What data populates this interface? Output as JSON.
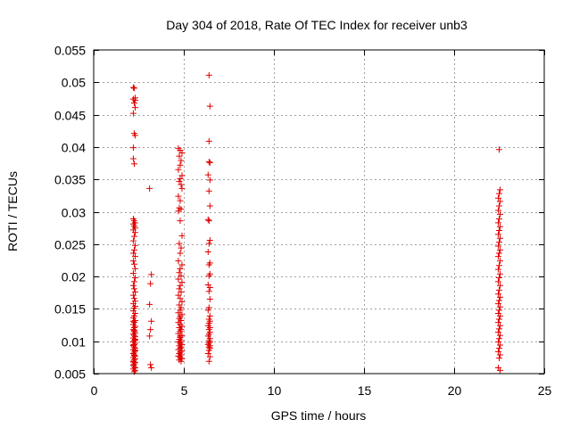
{
  "chart_data": {
    "type": "scatter",
    "title": "Day 304 of 2018, Rate Of TEC Index for receiver unb3",
    "xlabel": "GPS time / hours",
    "ylabel": "ROTI / TECUs",
    "xlim": [
      0,
      25
    ],
    "ylim": [
      0.005,
      0.055
    ],
    "xticks": [
      0,
      5,
      10,
      15,
      20,
      25
    ],
    "xtick_labels": [
      "0",
      "5",
      "10",
      "15",
      "20",
      "25"
    ],
    "yticks": [
      0.005,
      0.01,
      0.015,
      0.02,
      0.025,
      0.03,
      0.035,
      0.04,
      0.045,
      0.05,
      0.055
    ],
    "ytick_labels": [
      "0.005",
      "0.01",
      "0.015",
      "0.02",
      "0.025",
      "0.03",
      "0.035",
      "0.04",
      "0.045",
      "0.05",
      "0.055"
    ],
    "grid": true,
    "marker": "+",
    "color": "#e00000",
    "series": [
      {
        "name": "ROTI",
        "x": [
          2.2,
          2.25,
          2.3,
          2.2,
          2.3,
          2.25,
          2.3,
          2.2,
          2.25,
          2.3,
          2.2,
          2.2,
          2.25,
          2.2,
          2.25,
          2.3,
          2.2,
          2.25,
          2.3,
          2.2,
          2.3,
          2.25,
          2.2,
          2.3,
          2.25,
          2.2,
          2.3,
          2.2,
          2.25,
          2.3,
          2.2,
          2.3,
          2.25,
          2.2,
          2.25,
          2.3,
          2.2,
          2.25,
          2.3,
          2.2,
          2.3,
          2.25,
          2.2,
          2.3,
          2.25,
          2.2,
          2.3,
          2.25,
          2.2,
          2.3,
          2.25,
          2.2,
          2.25,
          2.3,
          2.2,
          2.25,
          2.3,
          2.2,
          2.3,
          2.25,
          2.2,
          2.3,
          2.25,
          2.2,
          2.25,
          2.3,
          2.2,
          2.3,
          2.25,
          2.2,
          2.25,
          2.3,
          2.2,
          2.3,
          2.25,
          2.2,
          2.3,
          2.25,
          2.2,
          2.25,
          2.3,
          2.2,
          2.3,
          2.25,
          2.2,
          2.25,
          2.3,
          2.2,
          2.3,
          2.25,
          2.2,
          3.1,
          3.2,
          3.15,
          3.1,
          3.2,
          3.15,
          3.1,
          3.15,
          3.2,
          4.7,
          4.8,
          4.9,
          4.75,
          4.85,
          4.8,
          4.7,
          4.9,
          4.8,
          4.75,
          4.85,
          4.9,
          4.7,
          4.8,
          4.75,
          4.85,
          4.7,
          4.8,
          4.9,
          4.75,
          4.85,
          4.8,
          4.7,
          4.9,
          4.8,
          4.75,
          4.85,
          4.7,
          4.9,
          4.8,
          4.75,
          4.85,
          4.7,
          4.8,
          4.9,
          4.75,
          4.85,
          4.8,
          4.7,
          4.9,
          4.8,
          4.75,
          4.85,
          4.7,
          4.8,
          4.9,
          4.75,
          4.85,
          4.8,
          4.7,
          4.9,
          4.8,
          4.75,
          4.85,
          4.7,
          4.8,
          4.9,
          4.75,
          4.85,
          4.8,
          4.7,
          4.9,
          4.8,
          4.75,
          4.85,
          4.7,
          4.8,
          4.9,
          4.75,
          4.85,
          4.8,
          6.4,
          6.45,
          6.4,
          6.45,
          6.4,
          6.35,
          6.45,
          6.4,
          6.45,
          6.35,
          6.4,
          6.45,
          6.4,
          6.35,
          6.45,
          6.4,
          6.45,
          6.4,
          6.35,
          6.45,
          6.4,
          6.45,
          6.4,
          6.35,
          6.45,
          6.4,
          6.45,
          6.4,
          6.35,
          6.45,
          6.4,
          6.45,
          6.4,
          6.35,
          6.45,
          6.4,
          6.45,
          6.4,
          6.35,
          6.45,
          6.4,
          6.45,
          6.4,
          6.35,
          6.45,
          6.4,
          22.5,
          22.55,
          22.5,
          22.45,
          22.55,
          22.5,
          22.45,
          22.55,
          22.5,
          22.45,
          22.55,
          22.5,
          22.45,
          22.55,
          22.5,
          22.45,
          22.55,
          22.5,
          22.45,
          22.55,
          22.5,
          22.45,
          22.55,
          22.5,
          22.45,
          22.55,
          22.5,
          22.45,
          22.55,
          22.5,
          22.45,
          22.55,
          22.5,
          22.45,
          22.55,
          22.5,
          22.45,
          22.55,
          22.5,
          22.45,
          22.55,
          22.5,
          22.45,
          22.55,
          22.5,
          22.45,
          22.55,
          22.5,
          22.45,
          22.55
        ],
        "y": [
          0.0492,
          0.0491,
          0.0476,
          0.0474,
          0.0472,
          0.0468,
          0.0461,
          0.0452,
          0.0421,
          0.0418,
          0.0399,
          0.0382,
          0.0374,
          0.0289,
          0.0286,
          0.0283,
          0.0281,
          0.0278,
          0.0275,
          0.0272,
          0.0268,
          0.0262,
          0.0255,
          0.0248,
          0.0241,
          0.0236,
          0.0231,
          0.0224,
          0.0219,
          0.0212,
          0.0205,
          0.0198,
          0.0192,
          0.0186,
          0.0181,
          0.0176,
          0.0171,
          0.0166,
          0.0162,
          0.0158,
          0.0154,
          0.0151,
          0.0147,
          0.0143,
          0.0139,
          0.0136,
          0.0132,
          0.0129,
          0.0126,
          0.0123,
          0.0121,
          0.0118,
          0.0115,
          0.0113,
          0.0111,
          0.0109,
          0.0107,
          0.0105,
          0.0103,
          0.0101,
          0.0099,
          0.0097,
          0.0095,
          0.0093,
          0.0091,
          0.0089,
          0.0087,
          0.0085,
          0.0083,
          0.0081,
          0.0079,
          0.0077,
          0.0075,
          0.0073,
          0.0071,
          0.0069,
          0.0067,
          0.0065,
          0.0063,
          0.0061,
          0.0059,
          0.0057,
          0.0055,
          0.0053,
          0.0131,
          0.0117,
          0.0102,
          0.0094,
          0.0086,
          0.0078,
          0.0068,
          0.0336,
          0.0203,
          0.0189,
          0.0157,
          0.0131,
          0.0118,
          0.0108,
          0.0064,
          0.0059,
          0.0398,
          0.0395,
          0.0391,
          0.0386,
          0.0379,
          0.0372,
          0.0365,
          0.0356,
          0.0351,
          0.0347,
          0.0342,
          0.0336,
          0.0324,
          0.0317,
          0.0306,
          0.0304,
          0.0301,
          0.0286,
          0.0263,
          0.0251,
          0.0244,
          0.0236,
          0.0224,
          0.0218,
          0.0212,
          0.0206,
          0.0201,
          0.0196,
          0.0191,
          0.0186,
          0.0181,
          0.0176,
          0.0171,
          0.0166,
          0.0161,
          0.0156,
          0.0152,
          0.0148,
          0.0144,
          0.0141,
          0.0138,
          0.0135,
          0.0132,
          0.0129,
          0.0126,
          0.0123,
          0.0121,
          0.0118,
          0.0115,
          0.0112,
          0.0109,
          0.0106,
          0.0103,
          0.0101,
          0.0099,
          0.0097,
          0.0095,
          0.0093,
          0.0091,
          0.0089,
          0.0087,
          0.0085,
          0.0083,
          0.0081,
          0.0079,
          0.0077,
          0.0075,
          0.0073,
          0.0071,
          0.0069,
          0.0108,
          0.0511,
          0.0463,
          0.0409,
          0.0376,
          0.0377,
          0.0357,
          0.0349,
          0.0332,
          0.0309,
          0.0288,
          0.0286,
          0.0256,
          0.0251,
          0.0238,
          0.0221,
          0.0218,
          0.0204,
          0.0201,
          0.0187,
          0.0183,
          0.0177,
          0.0165,
          0.0152,
          0.0148,
          0.0139,
          0.0134,
          0.0131,
          0.0128,
          0.0124,
          0.0121,
          0.0118,
          0.0114,
          0.0111,
          0.0108,
          0.0104,
          0.0101,
          0.0099,
          0.0097,
          0.0095,
          0.0093,
          0.0091,
          0.0089,
          0.0086,
          0.0081,
          0.0076,
          0.0069,
          0.0396,
          0.0334,
          0.0328,
          0.0321,
          0.0316,
          0.0309,
          0.0302,
          0.0296,
          0.0289,
          0.0283,
          0.0277,
          0.0271,
          0.0265,
          0.0259,
          0.0253,
          0.0247,
          0.0241,
          0.0236,
          0.0231,
          0.0224,
          0.0217,
          0.0211,
          0.0204,
          0.0198,
          0.0192,
          0.0186,
          0.0179,
          0.0173,
          0.0168,
          0.0163,
          0.0158,
          0.0153,
          0.0148,
          0.0143,
          0.0139,
          0.0134,
          0.0129,
          0.0124,
          0.0119,
          0.0114,
          0.0109,
          0.0104,
          0.0099,
          0.0094,
          0.0089,
          0.0084,
          0.0079,
          0.0074,
          0.0059,
          0.0055
        ]
      }
    ]
  }
}
